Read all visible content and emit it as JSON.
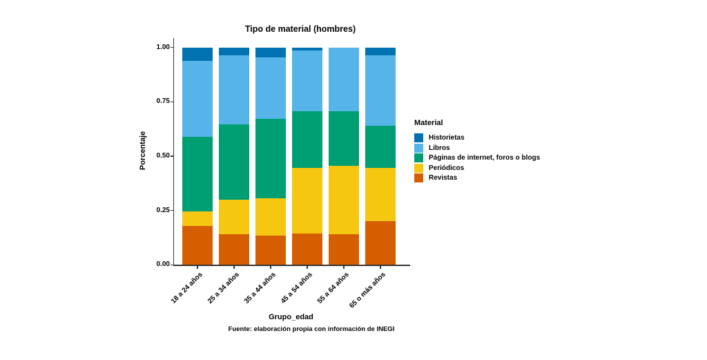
{
  "chart_data": {
    "type": "bar",
    "stacked": true,
    "title": "Tipo de material (hombres)",
    "xlabel": "Grupo_edad",
    "ylabel": "Porcentaje",
    "caption": "Fuente: elaboración propia con información de INEGI",
    "legend_title": "Material",
    "legend_position": "right",
    "grid": false,
    "ylim": [
      0,
      1
    ],
    "y_ticks": [
      {
        "v": 0.0,
        "label": "0.00"
      },
      {
        "v": 0.25,
        "label": "0.25"
      },
      {
        "v": 0.5,
        "label": "0.50"
      },
      {
        "v": 0.75,
        "label": "0.75"
      },
      {
        "v": 1.0,
        "label": "1.00"
      }
    ],
    "categories": [
      "18 a 24 años",
      "25 a 34 años",
      "35 a 44 años",
      "45 a 54 años",
      "55 a 64 años",
      "65 o más años"
    ],
    "series": [
      {
        "name": "Historietas",
        "color": "#0072B2",
        "values": [
          0.06,
          0.035,
          0.045,
          0.015,
          0.0,
          0.035
        ]
      },
      {
        "name": "Libros",
        "color": "#56B4E9",
        "values": [
          0.35,
          0.32,
          0.285,
          0.28,
          0.295,
          0.325
        ]
      },
      {
        "name": "Páginas de internet, foros o blogs",
        "color": "#009E73",
        "values": [
          0.345,
          0.345,
          0.365,
          0.26,
          0.25,
          0.195
        ]
      },
      {
        "name": "Periódicos",
        "color": "#F5C710",
        "values": [
          0.065,
          0.16,
          0.17,
          0.3,
          0.315,
          0.245
        ]
      },
      {
        "name": "Revistas",
        "color": "#D55E00",
        "values": [
          0.18,
          0.14,
          0.135,
          0.145,
          0.14,
          0.2
        ]
      }
    ],
    "stack_order_bottom_to_top": [
      "Revistas",
      "Periódicos",
      "Páginas de internet, foros o blogs",
      "Libros",
      "Historietas"
    ]
  }
}
